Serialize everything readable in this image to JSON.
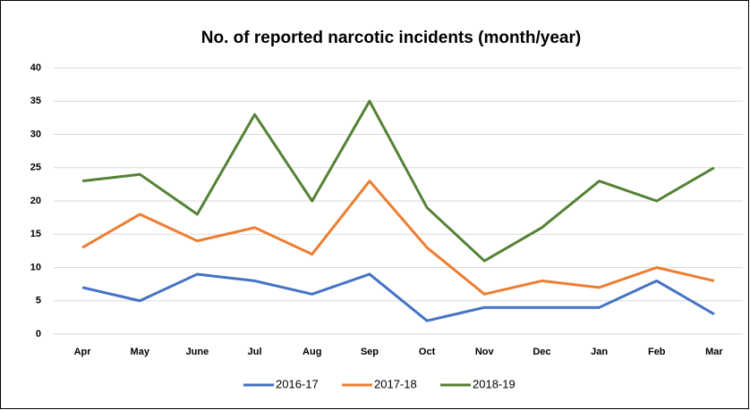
{
  "chart_data": {
    "type": "line",
    "title": "No. of reported narcotic incidents (month/year)",
    "categories": [
      "Apr",
      "May",
      "June",
      "Jul",
      "Aug",
      "Sep",
      "Oct",
      "Nov",
      "Dec",
      "Jan",
      "Feb",
      "Mar"
    ],
    "series": [
      {
        "name": "2016-17",
        "color": "#4472c4",
        "values": [
          7,
          5,
          9,
          8,
          6,
          9,
          2,
          4,
          4,
          4,
          8,
          3
        ]
      },
      {
        "name": "2017-18",
        "color": "#ed7d31",
        "values": [
          13,
          18,
          14,
          16,
          12,
          23,
          13,
          6,
          8,
          7,
          10,
          8
        ]
      },
      {
        "name": "2018-19",
        "color": "#548235",
        "values": [
          23,
          24,
          18,
          33,
          20,
          35,
          19,
          11,
          16,
          23,
          20,
          25
        ]
      }
    ],
    "ylim": [
      0,
      40
    ],
    "yticks": [
      0,
      5,
      10,
      15,
      20,
      25,
      30,
      35,
      40
    ],
    "grid": true,
    "legend": "bottom"
  }
}
